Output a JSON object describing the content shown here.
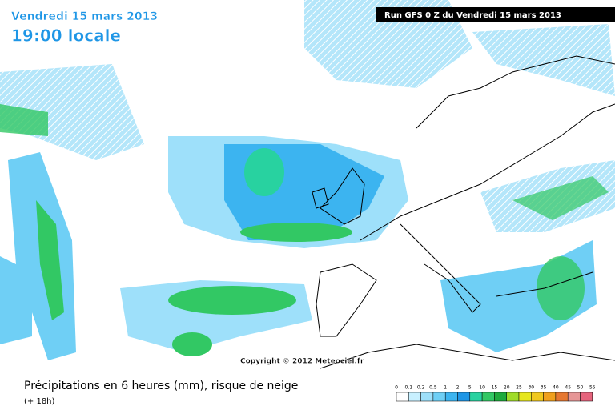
{
  "header": {
    "date": "Vendredi 15 mars 2013",
    "time": "19:00 locale",
    "run": "Run GFS 0 Z du Vendredi 15 mars 2013"
  },
  "copyright": "Copyright © 2012 Meteociel.fr",
  "footer": {
    "title": "Précipitations en 6 heures (mm), risque de neige",
    "lead": "(+ 18h)"
  },
  "legend": {
    "values": [
      0,
      0.1,
      0.2,
      0.5,
      1,
      2,
      5,
      10,
      15,
      20,
      25,
      30,
      35,
      40,
      45,
      50,
      55
    ],
    "colors": [
      "#ffffff",
      "#c8f0ff",
      "#9ee0fa",
      "#6fcff5",
      "#3cb4f0",
      "#1e96e6",
      "#28d2a0",
      "#32c864",
      "#1eaa3c",
      "#a0dc28",
      "#e6e61e",
      "#f0c81e",
      "#f0a01e",
      "#e67832",
      "#e69696",
      "#e6647d",
      "#c81e1e"
    ]
  }
}
